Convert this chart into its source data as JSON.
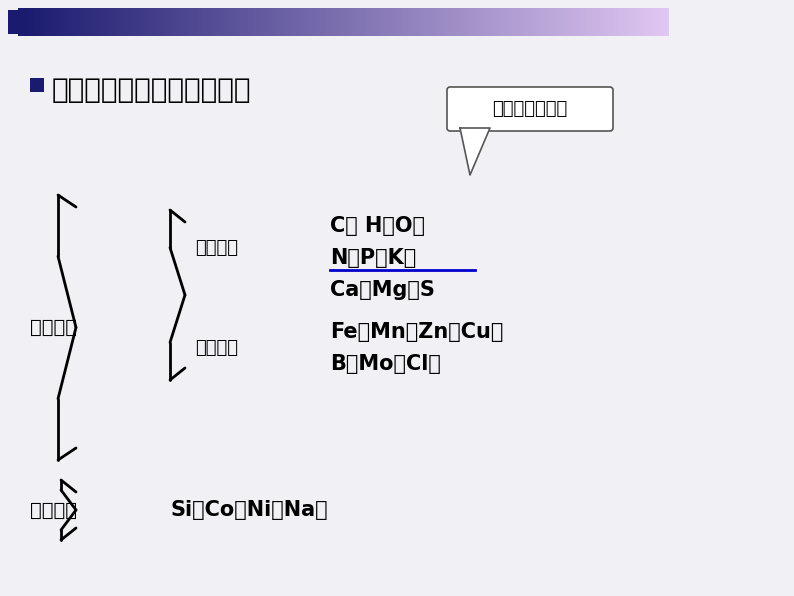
{
  "bg_color": "#f0f0f5",
  "title_text": "农作物生长所需的营养元素",
  "bullet_color": "#1a1a6e",
  "header_bar_left_color": "#1a1a6e",
  "header_bar_right_color": "#e0e0f0",
  "callout_text": "来源于空气和水",
  "callout_box_color": "#ffffff",
  "callout_border_color": "#555555",
  "biji_label": "必需元素",
  "changliang_label": "常量元素",
  "weiliang_label": "微量元素",
  "youyi_label": "有益元素",
  "changliang_elements_line1": "C、 H、O、",
  "changliang_elements_line2": "N、P、K、",
  "changliang_elements_line3": "Ca、Mg、S",
  "weiliang_elements_line1": "Fe、Mn、Zn、Cu、",
  "weiliang_elements_line2": "B、Mo、Cl等",
  "youyi_elements": "Si、Co、Ni、Na等",
  "underline_color": "#0000cc",
  "text_color": "#000000",
  "bold_color": "#000000"
}
